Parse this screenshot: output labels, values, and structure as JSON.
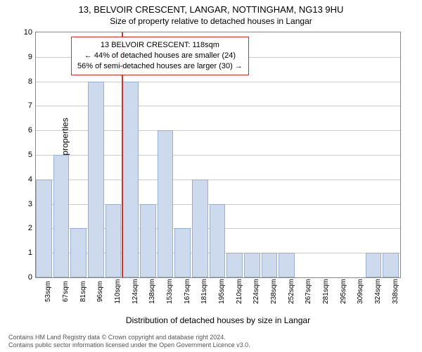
{
  "title": "13, BELVOIR CRESCENT, LANGAR, NOTTINGHAM, NG13 9HU",
  "subtitle": "Size of property relative to detached houses in Langar",
  "chart": {
    "type": "bar",
    "ylabel": "Number of detached properties",
    "xlabel": "Distribution of detached houses by size in Langar",
    "ylim": [
      0,
      10
    ],
    "ytick_step": 1,
    "bar_fill": "#cdd9ed",
    "bar_stroke": "#99aed0",
    "grid_color": "#cccccc",
    "border_color": "#888888",
    "background": "#ffffff",
    "marker_color": "#cc3333",
    "marker_category_index": 5,
    "categories": [
      "53sqm",
      "67sqm",
      "81sqm",
      "96sqm",
      "110sqm",
      "124sqm",
      "138sqm",
      "153sqm",
      "167sqm",
      "181sqm",
      "195sqm",
      "210sqm",
      "224sqm",
      "238sqm",
      "252sqm",
      "267sqm",
      "281sqm",
      "295sqm",
      "309sqm",
      "324sqm",
      "338sqm"
    ],
    "values": [
      4,
      5,
      2,
      8,
      3,
      8,
      3,
      6,
      2,
      4,
      3,
      1,
      1,
      1,
      1,
      0,
      0,
      0,
      0,
      1,
      1
    ],
    "info_box": {
      "line1": "13 BELVOIR CRESCENT: 118sqm",
      "line2": "← 44% of detached houses are smaller (24)",
      "line3": "56% of semi-detached houses are larger (30) →",
      "border_color": "#cc3333",
      "text_color": "#000000"
    }
  },
  "footer": {
    "line1": "Contains HM Land Registry data © Crown copyright and database right 2024.",
    "line2": "Contains public sector information licensed under the Open Government Licence v3.0."
  }
}
